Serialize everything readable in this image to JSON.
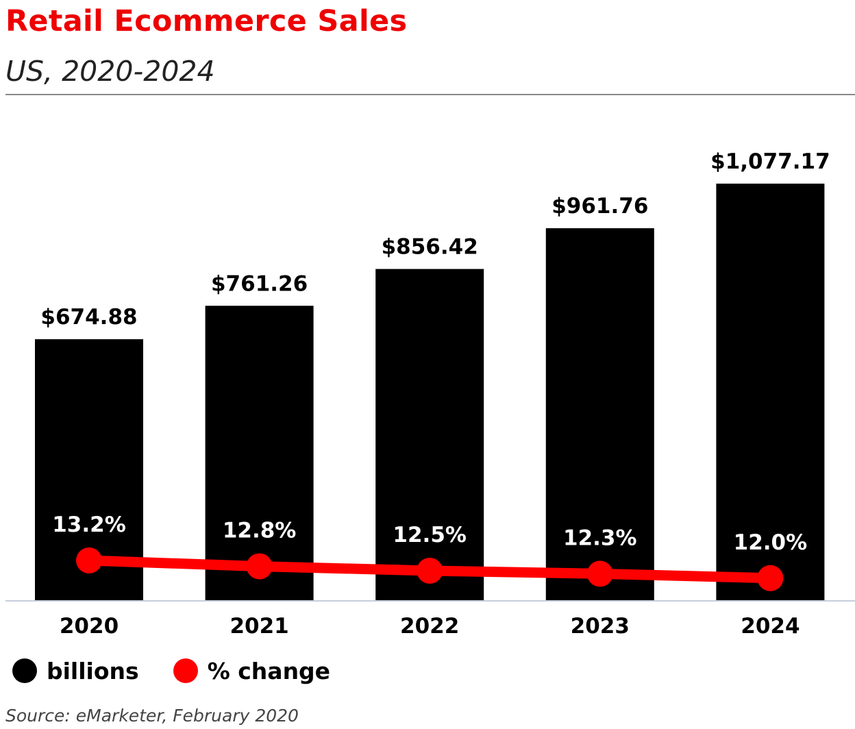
{
  "header": {
    "title": "Retail Ecommerce Sales",
    "subtitle": "US, 2020-2024"
  },
  "legend": {
    "items": [
      {
        "label": "billions",
        "color": "#000000"
      },
      {
        "label": "% change",
        "color": "#ff0000"
      }
    ]
  },
  "footer": {
    "source": "Source: eMarketer, February 2020"
  },
  "chart_data": {
    "type": "bar",
    "title": "Retail Ecommerce Sales",
    "subtitle": "US, 2020-2024",
    "categories": [
      "2020",
      "2021",
      "2022",
      "2023",
      "2024"
    ],
    "series": [
      {
        "name": "billions",
        "type": "bar",
        "color": "#000000",
        "values": [
          674.88,
          761.26,
          856.42,
          961.76,
          1077.17
        ],
        "labels": [
          "$674.88",
          "$761.26",
          "$856.42",
          "$961.76",
          "$1,077.17"
        ]
      },
      {
        "name": "% change",
        "type": "line",
        "color": "#ff0000",
        "values": [
          13.2,
          12.8,
          12.5,
          12.3,
          12.0
        ],
        "labels": [
          "13.2%",
          "12.8%",
          "12.5%",
          "12.3%",
          "12.0%"
        ]
      }
    ],
    "grid": false,
    "legend_position": "bottom-left"
  }
}
